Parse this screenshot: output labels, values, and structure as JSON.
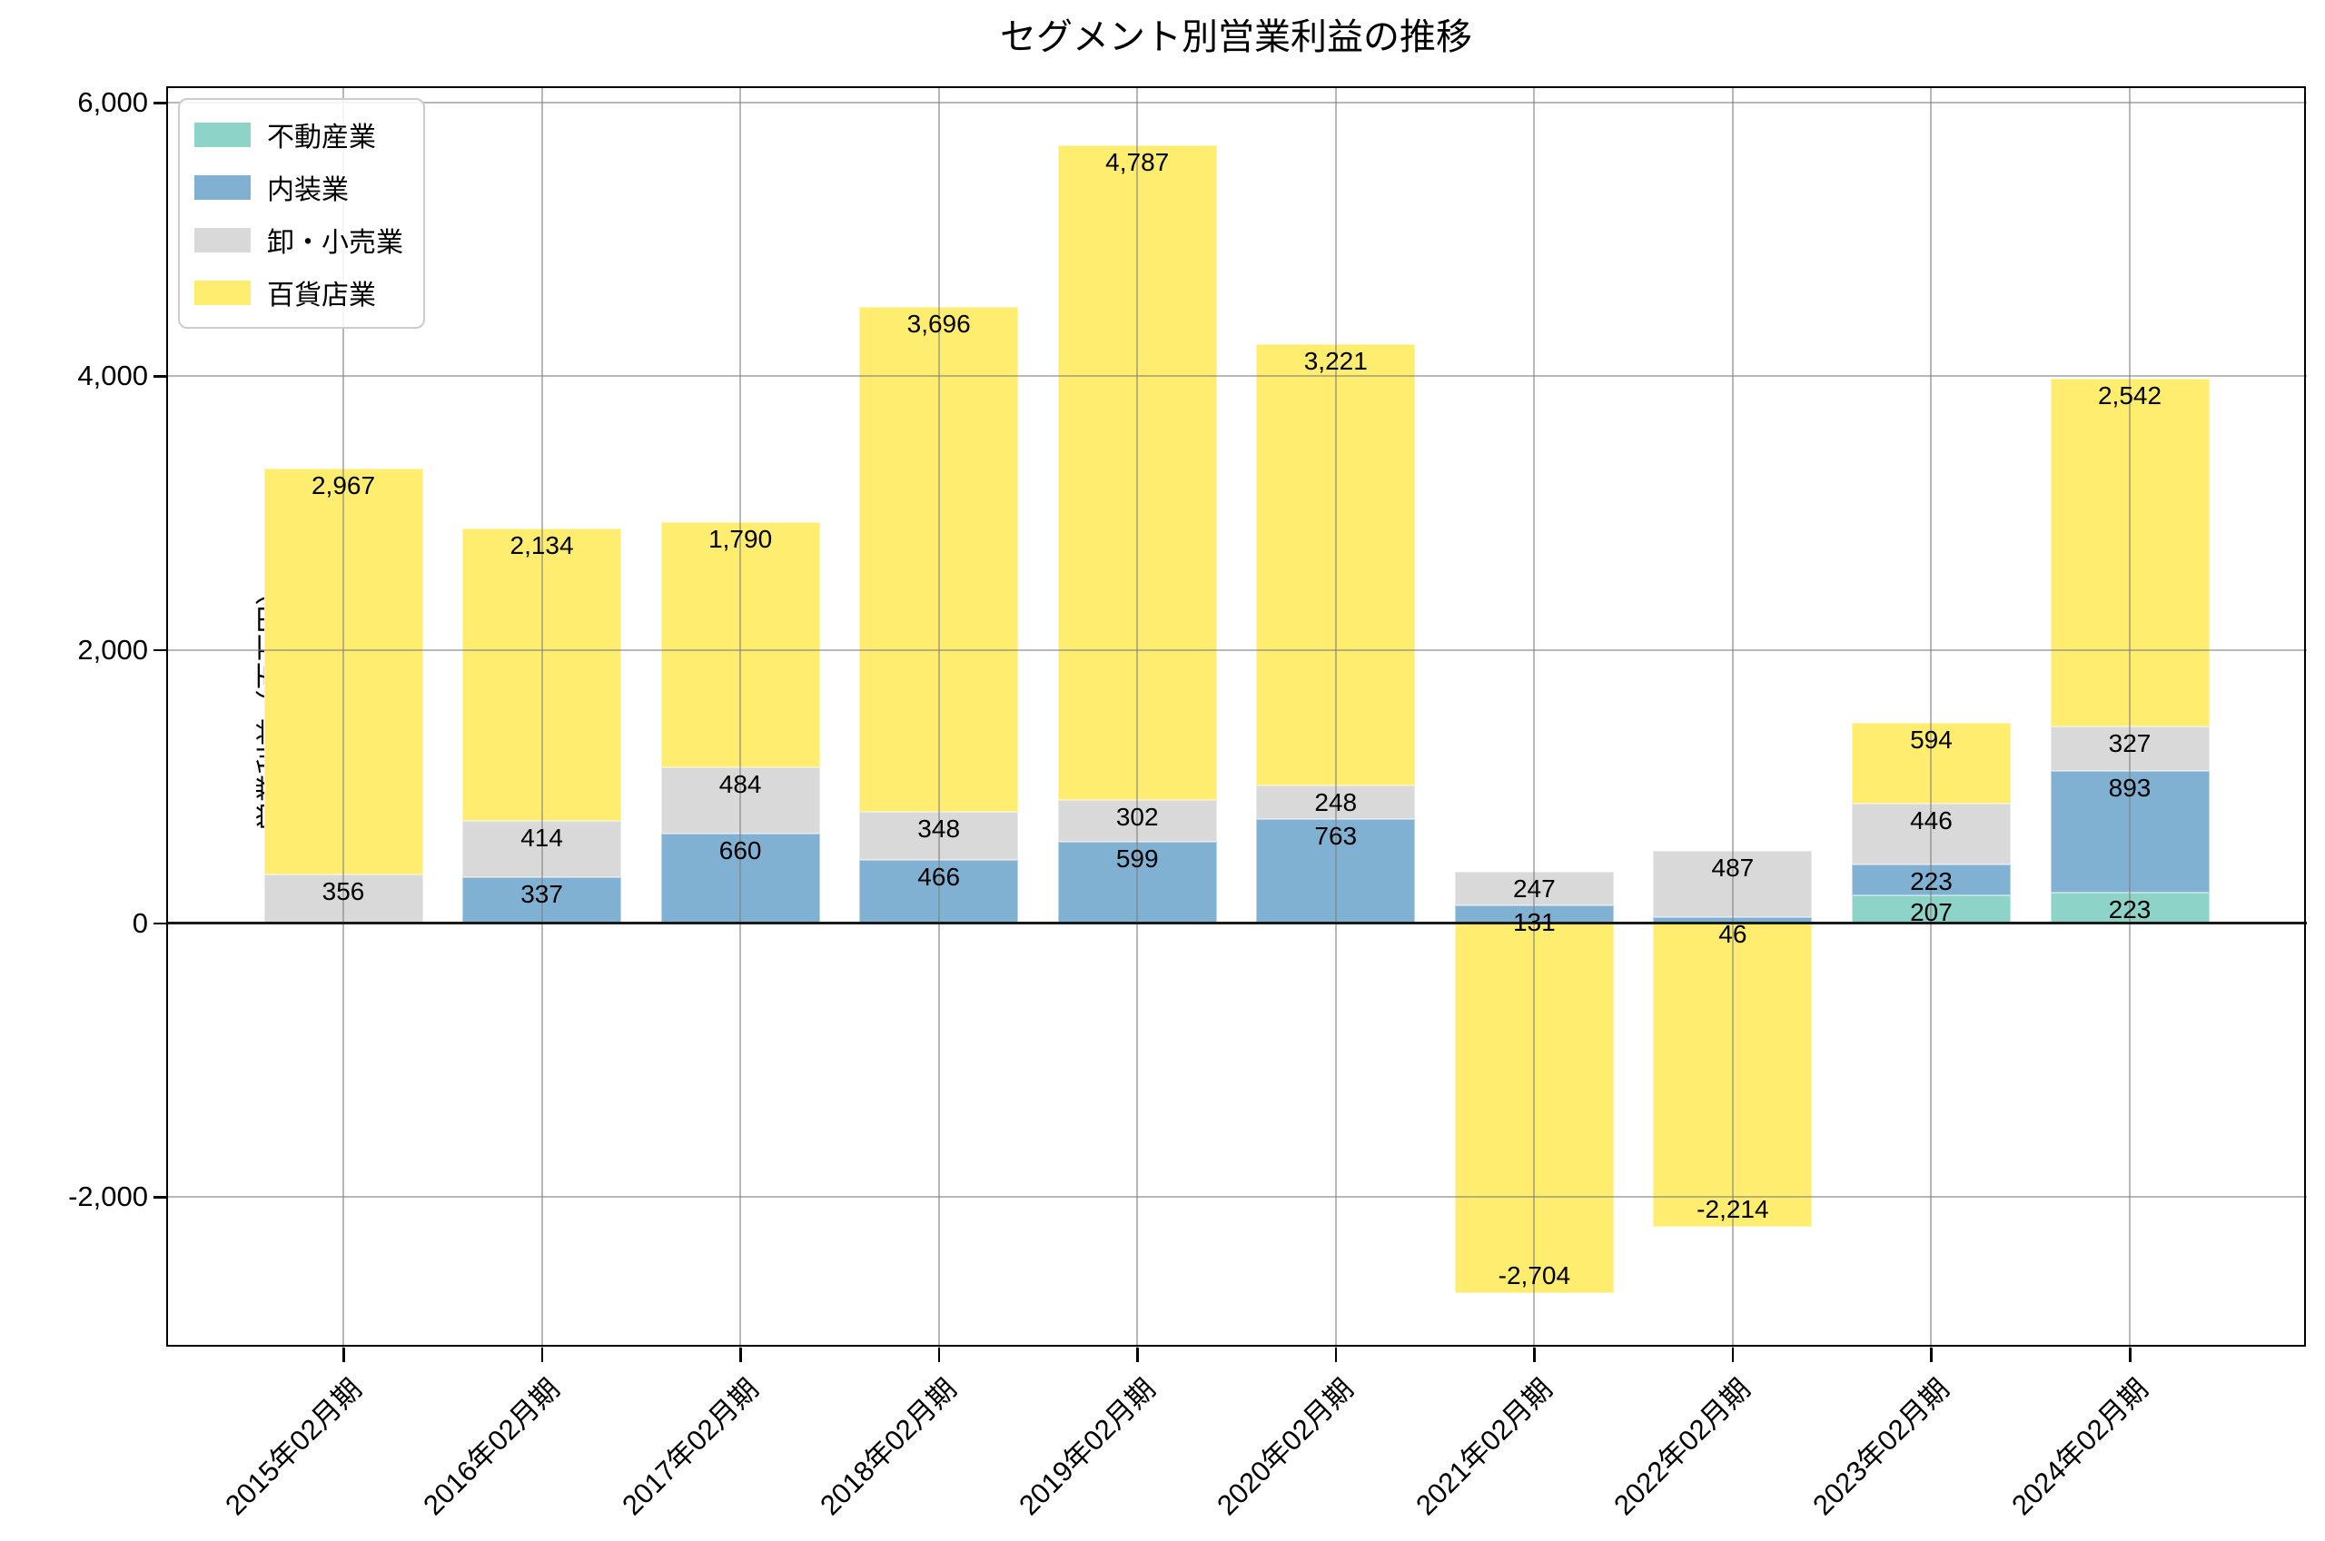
{
  "title": "セグメント別営業利益の推移",
  "chart_data": {
    "type": "bar",
    "stacked": true,
    "title": "セグメント別営業利益の推移",
    "xlabel": "",
    "ylabel": "営業利益（百万円）",
    "categories": [
      "2015年02月期",
      "2016年02月期",
      "2017年02月期",
      "2018年02月期",
      "2019年02月期",
      "2020年02月期",
      "2021年02月期",
      "2022年02月期",
      "2023年02月期",
      "2024年02月期"
    ],
    "series": [
      {
        "name": "不動産業",
        "color": "#8dd3c7",
        "values": [
          null,
          null,
          null,
          null,
          null,
          null,
          null,
          null,
          207,
          223
        ]
      },
      {
        "name": "内装業",
        "color": "#80b1d3",
        "values": [
          null,
          337,
          660,
          466,
          599,
          763,
          131,
          46,
          223,
          893
        ]
      },
      {
        "name": "卸・小売業",
        "color": "#d9d9d9",
        "values": [
          356,
          414,
          484,
          348,
          302,
          248,
          247,
          487,
          446,
          327
        ]
      },
      {
        "name": "百貨店業",
        "color": "#ffed6f",
        "values": [
          2967,
          2134,
          1790,
          3696,
          4787,
          3221,
          -2704,
          -2214,
          594,
          2542
        ]
      }
    ],
    "yticks": [
      {
        "value": 6000,
        "label": "6,000"
      },
      {
        "value": 4000,
        "label": "4,000"
      },
      {
        "value": 2000,
        "label": "2,000"
      },
      {
        "value": 0,
        "label": "0"
      },
      {
        "value": -2000,
        "label": "-2,000"
      }
    ],
    "ylim": [
      -3100,
      6120
    ],
    "grid": true,
    "legend_position": "upper-left",
    "value_label_format": "thousands-comma",
    "colors": {
      "grid": "#7d7d7d",
      "axis": "#000000",
      "background": "#ffffff"
    }
  }
}
